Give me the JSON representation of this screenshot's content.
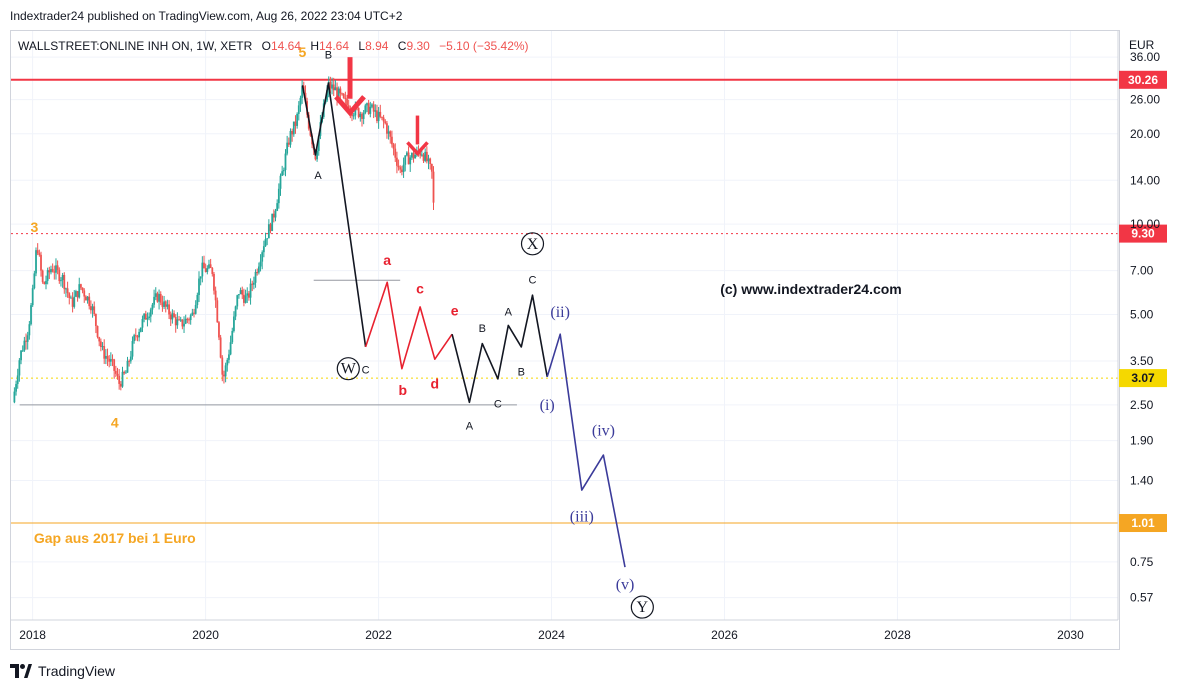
{
  "header": {
    "published": "Indextrader24 published on TradingView.com, Aug 26, 2022 23:04 UTC+2"
  },
  "legend": {
    "symbol": "WALLSTREET:ONLINE INH ON, 1W, XETR",
    "o_label": "O",
    "o": "14.64",
    "h_label": "H",
    "h": "14.64",
    "l_label": "L",
    "l": "8.94",
    "c_label": "C",
    "c": "9.30",
    "change": "−5.10 (−35.42%)"
  },
  "footer": {
    "brand": "TradingView"
  },
  "colors": {
    "bull": "#26a69a",
    "bear": "#ef5350",
    "resistance": "#f23645",
    "orange": "#f5a623",
    "yellow": "#f5d800",
    "navy": "#3b3b9a",
    "red_wave": "#e8212f",
    "black": "#131722"
  },
  "chart_data": {
    "type": "candlestick",
    "symbol": "WALLSTREET:ONLINE INH ON",
    "interval": "1W",
    "exchange": "XETR",
    "currency": "EUR",
    "y_scale": "log",
    "ylim": [
      0.48,
      44
    ],
    "xlim": [
      2017.75,
      2030.55
    ],
    "y_ticks": [
      "36.00",
      "26.00",
      "20.00",
      "14.00",
      "10.00",
      "7.00",
      "5.00",
      "3.50",
      "2.50",
      "1.90",
      "1.40",
      "0.75",
      "0.57"
    ],
    "x_ticks": [
      "2018",
      "2020",
      "2022",
      "2024",
      "2026",
      "2028",
      "2030"
    ],
    "price_path": [
      [
        2017.77,
        2.55
      ],
      [
        2017.85,
        3.6
      ],
      [
        2017.95,
        4.5
      ],
      [
        2018.0,
        5.8
      ],
      [
        2018.05,
        8.7
      ],
      [
        2018.12,
        6.2
      ],
      [
        2018.22,
        7.2
      ],
      [
        2018.35,
        6.6
      ],
      [
        2018.45,
        5.4
      ],
      [
        2018.55,
        6.2
      ],
      [
        2018.68,
        5.4
      ],
      [
        2018.8,
        3.8
      ],
      [
        2018.92,
        3.4
      ],
      [
        2019.0,
        2.95
      ],
      [
        2019.08,
        3.2
      ],
      [
        2019.18,
        4.2
      ],
      [
        2019.3,
        4.9
      ],
      [
        2019.45,
        5.8
      ],
      [
        2019.55,
        5.2
      ],
      [
        2019.7,
        4.6
      ],
      [
        2019.85,
        5.0
      ],
      [
        2019.95,
        7.1
      ],
      [
        2020.08,
        7.0
      ],
      [
        2020.16,
        4.2
      ],
      [
        2020.2,
        3.0
      ],
      [
        2020.28,
        3.9
      ],
      [
        2020.38,
        6.0
      ],
      [
        2020.48,
        5.6
      ],
      [
        2020.58,
        6.9
      ],
      [
        2020.68,
        8.8
      ],
      [
        2020.78,
        10.5
      ],
      [
        2020.88,
        14.5
      ],
      [
        2020.97,
        19.5
      ],
      [
        2021.05,
        22.0
      ],
      [
        2021.12,
        28.5
      ],
      [
        2021.2,
        21.0
      ],
      [
        2021.27,
        17.0
      ],
      [
        2021.35,
        23.0
      ],
      [
        2021.42,
        29.0
      ],
      [
        2021.5,
        28.0
      ],
      [
        2021.6,
        25.5
      ],
      [
        2021.7,
        24.0
      ],
      [
        2021.8,
        23.5
      ],
      [
        2021.9,
        24.5
      ],
      [
        2021.98,
        23.0
      ],
      [
        2022.08,
        21.5
      ],
      [
        2022.18,
        17.5
      ],
      [
        2022.25,
        15.0
      ],
      [
        2022.32,
        16.5
      ],
      [
        2022.42,
        17.0
      ],
      [
        2022.5,
        17.5
      ],
      [
        2022.57,
        16.0
      ],
      [
        2022.62,
        14.6
      ],
      [
        2022.65,
        9.3
      ]
    ],
    "levels": [
      {
        "price": 30.26,
        "label": "30.26",
        "style": "solid",
        "color": "#f23645"
      },
      {
        "price": 9.3,
        "label": "9.30",
        "style": "dotted",
        "color": "#f23645"
      },
      {
        "price": 3.07,
        "label": "3.07",
        "style": "dotted",
        "color": "#f5d800"
      },
      {
        "price": 1.01,
        "label": "1.01",
        "style": "solid",
        "color": "#f5a623"
      }
    ],
    "trendlines": [
      {
        "from": [
          2017.85,
          2.5
        ],
        "to": [
          2023.6,
          2.5
        ],
        "color": "#9598a1"
      },
      {
        "from": [
          2021.25,
          6.5
        ],
        "to": [
          2022.25,
          6.5
        ],
        "color": "#9598a1"
      }
    ],
    "wave_paths": [
      {
        "color": "#131722",
        "points": [
          [
            2021.12,
            29.0
          ],
          [
            2021.27,
            17.0
          ],
          [
            2021.42,
            29.5
          ],
          [
            2021.85,
            3.9
          ]
        ]
      },
      {
        "color": "#e8212f",
        "points": [
          [
            2021.85,
            3.9
          ],
          [
            2022.1,
            6.4
          ],
          [
            2022.27,
            3.3
          ],
          [
            2022.48,
            5.3
          ],
          [
            2022.65,
            3.55
          ],
          [
            2022.85,
            4.3
          ]
        ]
      },
      {
        "color": "#131722",
        "points": [
          [
            2022.85,
            4.3
          ],
          [
            2023.05,
            2.55
          ],
          [
            2023.2,
            4.0
          ],
          [
            2023.38,
            3.05
          ],
          [
            2023.5,
            4.6
          ],
          [
            2023.65,
            3.9
          ],
          [
            2023.78,
            5.8
          ],
          [
            2023.95,
            3.1
          ]
        ]
      },
      {
        "color": "#3b3b9a",
        "points": [
          [
            2023.95,
            3.1
          ],
          [
            2024.1,
            4.3
          ],
          [
            2024.35,
            1.3
          ],
          [
            2024.6,
            1.7
          ],
          [
            2024.85,
            0.72
          ]
        ]
      }
    ],
    "wave_labels": [
      {
        "text": "5",
        "x": 2021.12,
        "y": 37.5,
        "color": "#f5a623"
      },
      {
        "text": "3",
        "x": 2018.02,
        "y": 9.8,
        "color": "#f5a623"
      },
      {
        "text": "4",
        "x": 2018.95,
        "y": 2.18,
        "color": "#f5a623"
      },
      {
        "text": "B",
        "x": 2021.42,
        "y": 37.0,
        "color": "#131722"
      },
      {
        "text": "A",
        "x": 2021.3,
        "y": 14.7,
        "color": "#131722"
      },
      {
        "text": "C",
        "x": 2021.85,
        "y": 3.3,
        "color": "#131722"
      },
      {
        "text": "W",
        "x": 2021.65,
        "y": 3.3,
        "color": "#131722",
        "circled": true
      },
      {
        "text": "a",
        "x": 2022.1,
        "y": 7.6,
        "color": "#e8212f"
      },
      {
        "text": "b",
        "x": 2022.28,
        "y": 2.8,
        "color": "#e8212f"
      },
      {
        "text": "c",
        "x": 2022.48,
        "y": 6.1,
        "color": "#e8212f"
      },
      {
        "text": "d",
        "x": 2022.65,
        "y": 2.95,
        "color": "#e8212f"
      },
      {
        "text": "e",
        "x": 2022.88,
        "y": 5.15,
        "color": "#e8212f"
      },
      {
        "text": "X",
        "x": 2023.78,
        "y": 8.6,
        "color": "#131722",
        "circled": true
      },
      {
        "text": "A",
        "x": 2023.05,
        "y": 2.15,
        "color": "#131722"
      },
      {
        "text": "B",
        "x": 2023.2,
        "y": 4.55,
        "color": "#131722"
      },
      {
        "text": "C",
        "x": 2023.38,
        "y": 2.55,
        "color": "#131722"
      },
      {
        "text": "A",
        "x": 2023.5,
        "y": 5.15,
        "color": "#131722"
      },
      {
        "text": "B",
        "x": 2023.65,
        "y": 3.25,
        "color": "#131722"
      },
      {
        "text": "C",
        "x": 2023.78,
        "y": 6.6,
        "color": "#131722"
      },
      {
        "text": "(i)",
        "x": 2023.95,
        "y": 2.5,
        "color": "#3b3b9a"
      },
      {
        "text": "(ii)",
        "x": 2024.1,
        "y": 5.1,
        "color": "#3b3b9a"
      },
      {
        "text": "(iii)",
        "x": 2024.35,
        "y": 1.06,
        "color": "#3b3b9a"
      },
      {
        "text": "(iv)",
        "x": 2024.6,
        "y": 2.05,
        "color": "#3b3b9a"
      },
      {
        "text": "(v)",
        "x": 2024.85,
        "y": 0.63,
        "color": "#3b3b9a"
      },
      {
        "text": "Y",
        "x": 2025.05,
        "y": 0.53,
        "color": "#131722",
        "circled": true
      }
    ],
    "arrows": [
      {
        "x": 2021.67,
        "y_top": 36.0,
        "y_tip": 23.5,
        "size": "large"
      },
      {
        "x": 2022.45,
        "y_top": 23.0,
        "y_tip": 17.2,
        "size": "small"
      }
    ],
    "annotations": [
      {
        "text": "(c) www.indextrader24.com",
        "x": 2027.0,
        "y": 5.85,
        "color": "#131722"
      },
      {
        "text": "Gap aus 2017 bei 1 Euro",
        "x": 2018.95,
        "y": 0.865,
        "color": "#f5a623"
      }
    ]
  }
}
